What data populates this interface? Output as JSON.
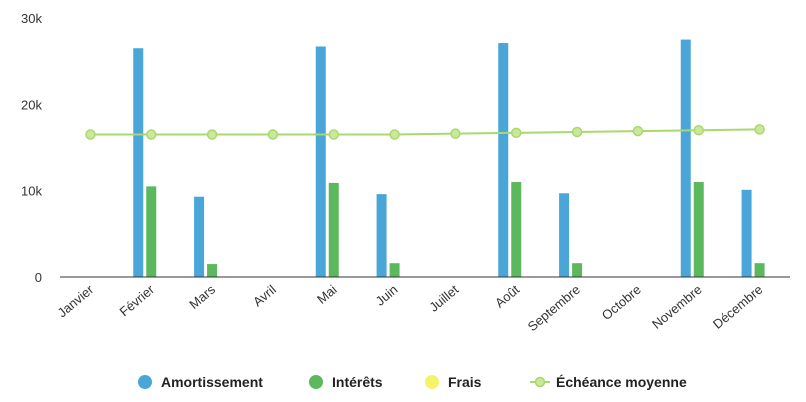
{
  "chart_data": {
    "type": "bar",
    "categories": [
      "Janvier",
      "Février",
      "Mars",
      "Avril",
      "Mai",
      "Juin",
      "Juillet",
      "Août",
      "Septembre",
      "Octobre",
      "Novembre",
      "Décembre"
    ],
    "ylim": [
      0,
      30000
    ],
    "yticks": [
      {
        "value": 0,
        "label": "0"
      },
      {
        "value": 10000,
        "label": "10k"
      },
      {
        "value": 20000,
        "label": "20k"
      },
      {
        "value": 30000,
        "label": "30k"
      }
    ],
    "grid": false,
    "legend_position": "bottom",
    "series": [
      {
        "name": "Amortissement",
        "type": "bar",
        "color": "#4aa6d8",
        "values": [
          0,
          26500,
          9300,
          0,
          26700,
          9600,
          0,
          27100,
          9700,
          0,
          27500,
          10100
        ]
      },
      {
        "name": "Intérêts",
        "type": "bar",
        "color": "#5cb85c",
        "values": [
          0,
          10500,
          1500,
          0,
          10900,
          1600,
          0,
          11000,
          1600,
          0,
          11000,
          1600
        ]
      },
      {
        "name": "Frais",
        "type": "bar",
        "color": "#f4f46b",
        "values": [
          0,
          0,
          0,
          0,
          0,
          0,
          0,
          0,
          0,
          0,
          0,
          0
        ]
      },
      {
        "name": "Échéance moyenne",
        "type": "line",
        "color": "#a9d86e",
        "values": [
          16500,
          16500,
          16500,
          16500,
          16500,
          16500,
          16600,
          16700,
          16800,
          16900,
          17000,
          17100
        ]
      }
    ]
  }
}
